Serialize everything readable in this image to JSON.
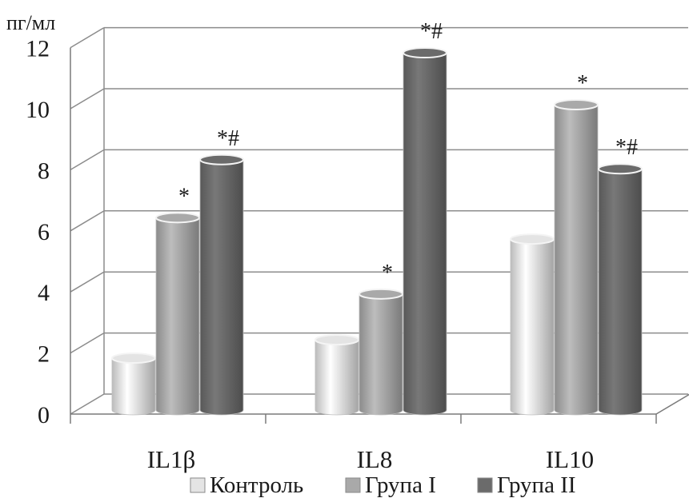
{
  "colors": {
    "background": "#ffffff",
    "grid": "#8c8c8c",
    "axis": "#7a7a7a",
    "text": "#1a1a1a",
    "series": [
      "#e4e4e4",
      "#a9a9a9",
      "#6b6b6b"
    ]
  },
  "chart_data": {
    "type": "bar",
    "style": "3d-cylinder",
    "ylabel": "пг/мл",
    "ylim": [
      0,
      12
    ],
    "yticks": [
      "0",
      "2",
      "4",
      "6",
      "8",
      "10",
      "12"
    ],
    "grid": true,
    "legend_position": "bottom",
    "categories": [
      "IL1β",
      "IL8",
      "IL10"
    ],
    "series": [
      {
        "name": "Контроль",
        "values": [
          1.7,
          2.3,
          5.6
        ],
        "marks": [
          "",
          "",
          ""
        ]
      },
      {
        "name": "Група I",
        "values": [
          6.3,
          3.8,
          10.0
        ],
        "marks": [
          "*",
          "*",
          "*"
        ]
      },
      {
        "name": "Група II",
        "values": [
          8.2,
          11.7,
          7.9
        ],
        "marks": [
          "*#",
          "*#",
          "*#"
        ]
      }
    ]
  }
}
